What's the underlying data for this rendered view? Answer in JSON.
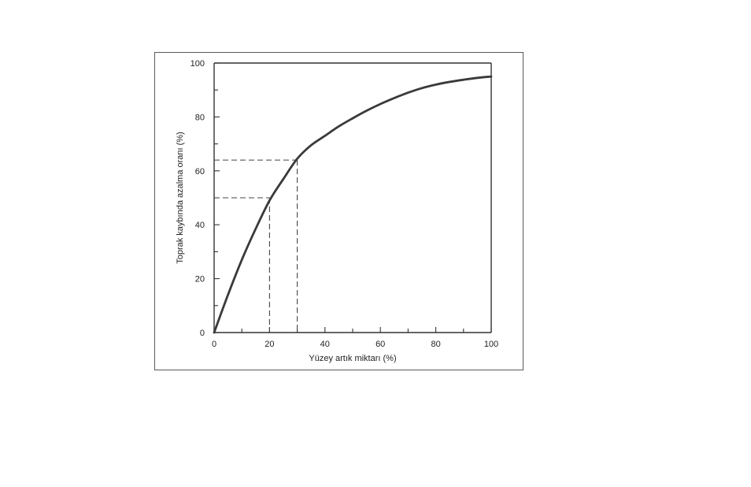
{
  "chart_data": {
    "type": "line",
    "title": "",
    "xlabel": "Yüzey artık miktarı (%)",
    "ylabel": "Toprak kaybında azalma oranı (%)",
    "xlim": [
      0,
      100
    ],
    "ylim": [
      0,
      100
    ],
    "x_ticks": [
      "0",
      "20",
      "40",
      "60",
      "80",
      "100"
    ],
    "y_ticks": [
      "0",
      "20",
      "40",
      "60",
      "80",
      "100"
    ],
    "grid": false,
    "series": [
      {
        "x": [
          0,
          5,
          10,
          15,
          20,
          25,
          30,
          35,
          40,
          45,
          50,
          55,
          60,
          65,
          70,
          75,
          80,
          85,
          90,
          95,
          100
        ],
        "y": [
          0,
          14,
          27,
          38.5,
          49,
          57,
          64.5,
          69.5,
          73,
          76.5,
          79.5,
          82.3,
          84.8,
          87,
          89,
          90.7,
          92,
          93,
          93.8,
          94.5,
          95
        ],
        "color": "#3a3a3a"
      }
    ],
    "reference_lines": [
      {
        "x": 20,
        "y": 50
      },
      {
        "x": 30,
        "y": 64
      }
    ],
    "colors": {
      "curve": "#3a3a3a",
      "axes": "#333333",
      "reference": "#444444"
    }
  }
}
